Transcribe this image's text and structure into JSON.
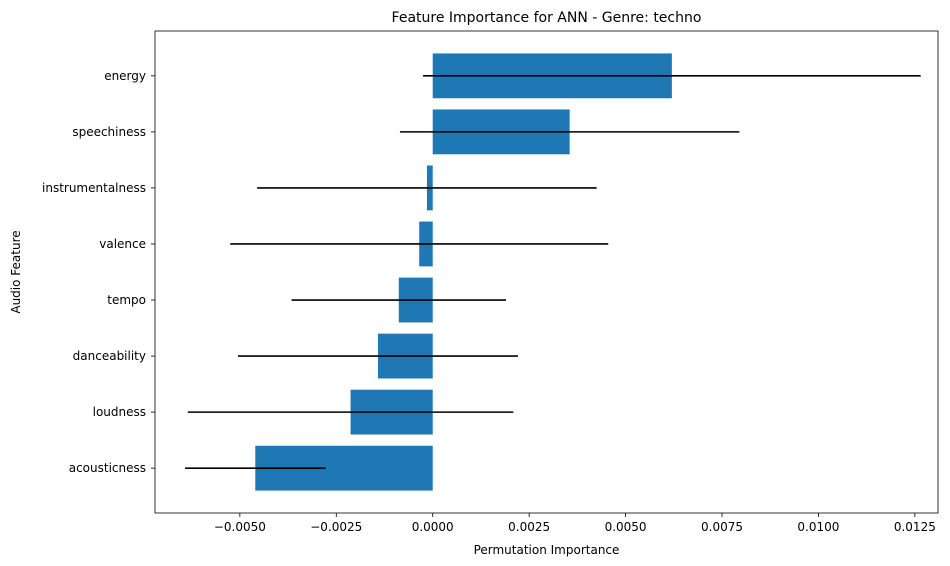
{
  "chart_data": {
    "type": "bar",
    "orientation": "horizontal",
    "title": "Feature Importance for ANN - Genre: techno",
    "xlabel": "Permutation Importance",
    "ylabel": "Audio Feature",
    "xlim": [
      -0.0072,
      0.0131
    ],
    "categories": [
      "energy",
      "speechiness",
      "instrumentalness",
      "valence",
      "tempo",
      "danceability",
      "loudness",
      "acousticness"
    ],
    "values": [
      0.0062,
      0.00355,
      -0.00015,
      -0.00035,
      -0.00088,
      -0.00142,
      -0.00213,
      -0.0046
    ],
    "errors": [
      0.00645,
      0.0044,
      0.0044,
      0.0049,
      0.00278,
      0.00363,
      0.00422,
      0.00182
    ],
    "x_ticks": [
      -0.005,
      -0.0025,
      0.0,
      0.0025,
      0.005,
      0.0075,
      0.01,
      0.0125
    ],
    "x_tick_labels": [
      "−0.0050",
      "−0.0025",
      "0.0000",
      "0.0025",
      "0.0050",
      "0.0075",
      "0.0100",
      "0.0125"
    ],
    "bar_color": "#1f77b4",
    "error_color": "#000000",
    "grid": false
  }
}
